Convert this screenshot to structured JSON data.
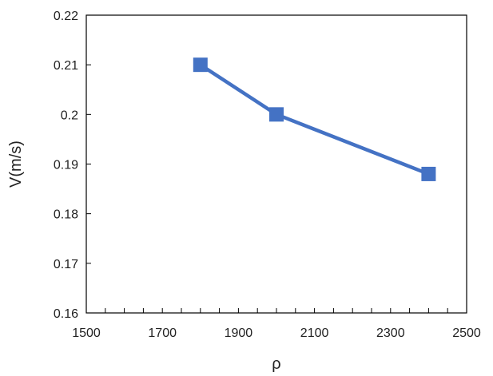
{
  "chart_data": {
    "type": "line",
    "title": "",
    "xlabel": "ρ",
    "ylabel": "V(m/s)",
    "xlim": [
      1500,
      2500
    ],
    "ylim": [
      0.16,
      0.22
    ],
    "x_ticks": [
      1500,
      1700,
      1900,
      2100,
      2300,
      2500
    ],
    "x_tick_labels": [
      "1500",
      "1700",
      "1900",
      "2100",
      "2300",
      "2500"
    ],
    "x_minor_step": 50,
    "y_ticks": [
      0.16,
      0.17,
      0.18,
      0.19,
      0.2,
      0.21,
      0.22
    ],
    "y_tick_labels": [
      "0.16",
      "0.17",
      "0.18",
      "0.19",
      "0.2",
      "0.21",
      "0.22"
    ],
    "grid": false,
    "legend": "none",
    "series": [
      {
        "x": [
          1800,
          2000,
          2400
        ],
        "y": [
          0.21,
          0.2,
          0.188
        ],
        "marker": "square",
        "color": "#4472C4"
      }
    ]
  }
}
